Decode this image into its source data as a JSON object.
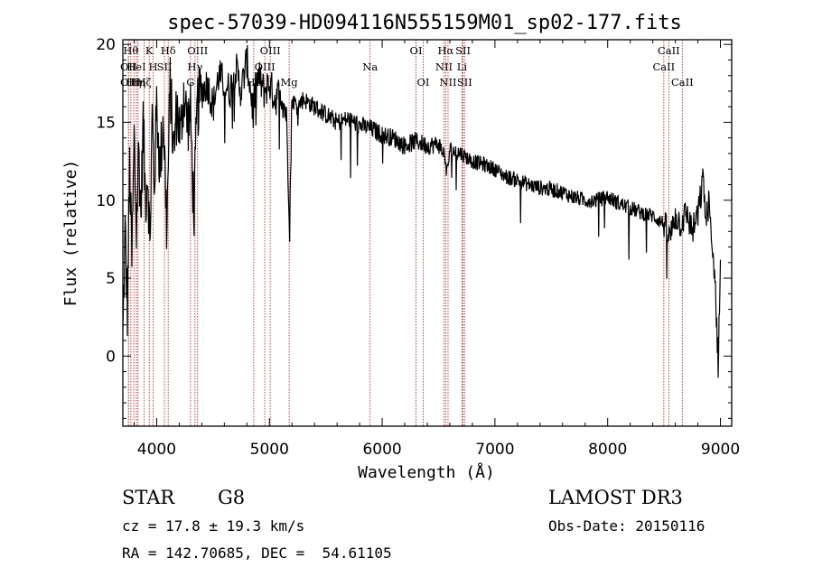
{
  "chart_data": {
    "type": "line",
    "title": "spec-57039-HD094116N555159M01_sp02-177.fits",
    "xlabel": "Wavelength (Å)",
    "ylabel": "Flux (relative)",
    "xlim": [
      3700,
      9100
    ],
    "ylim": [
      -4.5,
      20.3
    ],
    "xticks": [
      4000,
      5000,
      6000,
      7000,
      8000,
      9000
    ],
    "yticks": [
      0,
      5,
      10,
      15,
      20
    ],
    "grid": false,
    "series": [
      {
        "x": [
          3700,
          3720,
          3740,
          3760,
          3780,
          3800,
          3820,
          3840,
          3860,
          3880,
          3900,
          3920,
          3940,
          3960,
          3980,
          4000,
          4030,
          4060,
          4090,
          4120,
          4150,
          4180,
          4210,
          4240,
          4270,
          4300,
          4330,
          4360,
          4400,
          4450,
          4500,
          4550,
          4600,
          4650,
          4700,
          4750,
          4800,
          4850,
          4900,
          4950,
          5000,
          5050,
          5100,
          5150,
          5170,
          5180,
          5200,
          5250,
          5300,
          5400,
          5500,
          5600,
          5700,
          5800,
          5900,
          6000,
          6100,
          6200,
          6300,
          6400,
          6500,
          6560,
          6570,
          6600,
          6700,
          6800,
          6900,
          7000,
          7100,
          7200,
          7300,
          7400,
          7500,
          7600,
          7700,
          7800,
          7900,
          8000,
          8100,
          8200,
          8300,
          8400,
          8500,
          8550,
          8600,
          8650,
          8700,
          8750,
          8800,
          8830,
          8850,
          8870,
          8900,
          8920,
          8950,
          8980,
          9000
        ],
        "y": [
          1.0,
          8.0,
          3.0,
          12.0,
          6.0,
          14.0,
          8.0,
          13.5,
          9.0,
          15.0,
          10.0,
          12.0,
          7.0,
          15.5,
          11.0,
          16.0,
          12.0,
          15.5,
          8.0,
          17.5,
          13.0,
          16.0,
          14.0,
          17.0,
          15.0,
          15.5,
          9.0,
          16.0,
          17.0,
          17.5,
          16.0,
          18.0,
          17.5,
          17.0,
          18.5,
          17.0,
          19.0,
          16.0,
          18.0,
          17.0,
          17.5,
          16.5,
          17.0,
          15.5,
          11.0,
          8.5,
          16.5,
          16.0,
          16.5,
          16.0,
          15.5,
          15.0,
          15.2,
          14.8,
          14.6,
          14.2,
          14.0,
          13.5,
          13.8,
          13.5,
          13.6,
          12.8,
          11.5,
          13.2,
          13.0,
          12.5,
          12.3,
          12.0,
          11.5,
          11.3,
          11.0,
          10.8,
          10.7,
          10.5,
          10.2,
          10.0,
          10.0,
          10.2,
          9.8,
          9.5,
          9.2,
          9.0,
          8.5,
          7.5,
          9.0,
          8.5,
          9.2,
          8.0,
          9.0,
          10.5,
          11.5,
          8.5,
          10.0,
          7.0,
          5.5,
          -0.5,
          6.0
        ]
      }
    ],
    "lines": [
      {
        "wl": 3750,
        "label": "OII",
        "row": 1
      },
      {
        "wl": 3750,
        "label": "OII",
        "row": 2
      },
      {
        "wl": 3771,
        "label": "Hθ",
        "row": 0
      },
      {
        "wl": 3798,
        "label": "Hη",
        "row": 2
      },
      {
        "wl": 3820,
        "label": "HeI",
        "row": 1
      },
      {
        "wl": 3835,
        "label": "Hη",
        "row": 2
      },
      {
        "wl": 3889,
        "label": "Hζ",
        "row": 2
      },
      {
        "wl": 3934,
        "label": "K",
        "row": 0
      },
      {
        "wl": 3969,
        "label": "H",
        "row": 1
      },
      {
        "wl": 4069,
        "label": "SII",
        "row": 1
      },
      {
        "wl": 4102,
        "label": "Hδ",
        "row": 0
      },
      {
        "wl": 4300,
        "label": "G",
        "row": 2
      },
      {
        "wl": 4340,
        "label": "Hγ",
        "row": 1
      },
      {
        "wl": 4363,
        "label": "OIII",
        "row": 0
      },
      {
        "wl": 4861,
        "label": "Hβ",
        "row": 2
      },
      {
        "wl": 4959,
        "label": "OIII",
        "row": 1
      },
      {
        "wl": 5007,
        "label": "OIII",
        "row": 0
      },
      {
        "wl": 5175,
        "label": "Mg",
        "row": 2
      },
      {
        "wl": 5893,
        "label": "Na",
        "row": 1
      },
      {
        "wl": 6300,
        "label": "OI",
        "row": 0
      },
      {
        "wl": 6364,
        "label": "OI",
        "row": 2
      },
      {
        "wl": 6548,
        "label": "NII",
        "row": 1
      },
      {
        "wl": 6563,
        "label": "Hα",
        "row": 0
      },
      {
        "wl": 6584,
        "label": "NII",
        "row": 2
      },
      {
        "wl": 6708,
        "label": "Li",
        "row": 1
      },
      {
        "wl": 6717,
        "label": "SII",
        "row": 0
      },
      {
        "wl": 6731,
        "label": "SII",
        "row": 2
      },
      {
        "wl": 8498,
        "label": "CaII",
        "row": 1
      },
      {
        "wl": 8542,
        "label": "CaII",
        "row": 0
      },
      {
        "wl": 8662,
        "label": "CaII",
        "row": 2
      }
    ]
  },
  "info": {
    "class_label": "STAR",
    "subclass": "G8",
    "cz": "cz = 17.8 ± 19.3 km/s",
    "coords": "RA = 142.70685, DEC =  54.61105",
    "survey": "LAMOST DR3",
    "obs_date": "Obs-Date: 20150116"
  }
}
